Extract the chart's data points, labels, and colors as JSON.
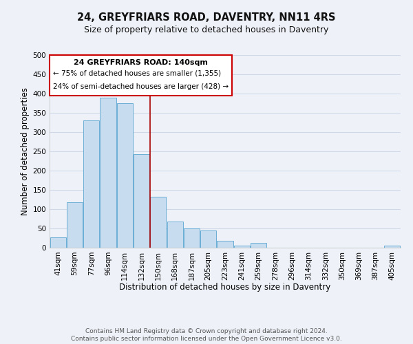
{
  "title": "24, GREYFRIARS ROAD, DAVENTRY, NN11 4RS",
  "subtitle": "Size of property relative to detached houses in Daventry",
  "xlabel": "Distribution of detached houses by size in Daventry",
  "ylabel": "Number of detached properties",
  "bar_labels": [
    "41sqm",
    "59sqm",
    "77sqm",
    "96sqm",
    "114sqm",
    "132sqm",
    "150sqm",
    "168sqm",
    "187sqm",
    "205sqm",
    "223sqm",
    "241sqm",
    "259sqm",
    "278sqm",
    "296sqm",
    "314sqm",
    "332sqm",
    "350sqm",
    "369sqm",
    "387sqm",
    "405sqm"
  ],
  "bar_values": [
    27,
    117,
    330,
    390,
    375,
    243,
    133,
    68,
    50,
    45,
    18,
    6,
    13,
    0,
    0,
    0,
    0,
    0,
    0,
    0,
    5
  ],
  "bar_color": "#c8dcf0",
  "bar_edge_color": "#6baed6",
  "vline_x": 5.5,
  "vline_color": "#aa0000",
  "annotation_title": "24 GREYFRIARS ROAD: 140sqm",
  "annotation_line1": "← 75% of detached houses are smaller (1,355)",
  "annotation_line2": "24% of semi-detached houses are larger (428) →",
  "annotation_box_color": "#ffffff",
  "annotation_box_edge": "#cc0000",
  "ylim": [
    0,
    500
  ],
  "yticks": [
    0,
    50,
    100,
    150,
    200,
    250,
    300,
    350,
    400,
    450,
    500
  ],
  "footer_line1": "Contains HM Land Registry data © Crown copyright and database right 2024.",
  "footer_line2": "Contains public sector information licensed under the Open Government Licence v3.0.",
  "bg_color": "#eef2f8",
  "plot_bg_color": "#eef2f8",
  "grid_color": "#d0d8e8",
  "title_fontsize": 10.5,
  "subtitle_fontsize": 9,
  "axis_label_fontsize": 8.5,
  "tick_fontsize": 7.5,
  "footer_fontsize": 6.5
}
